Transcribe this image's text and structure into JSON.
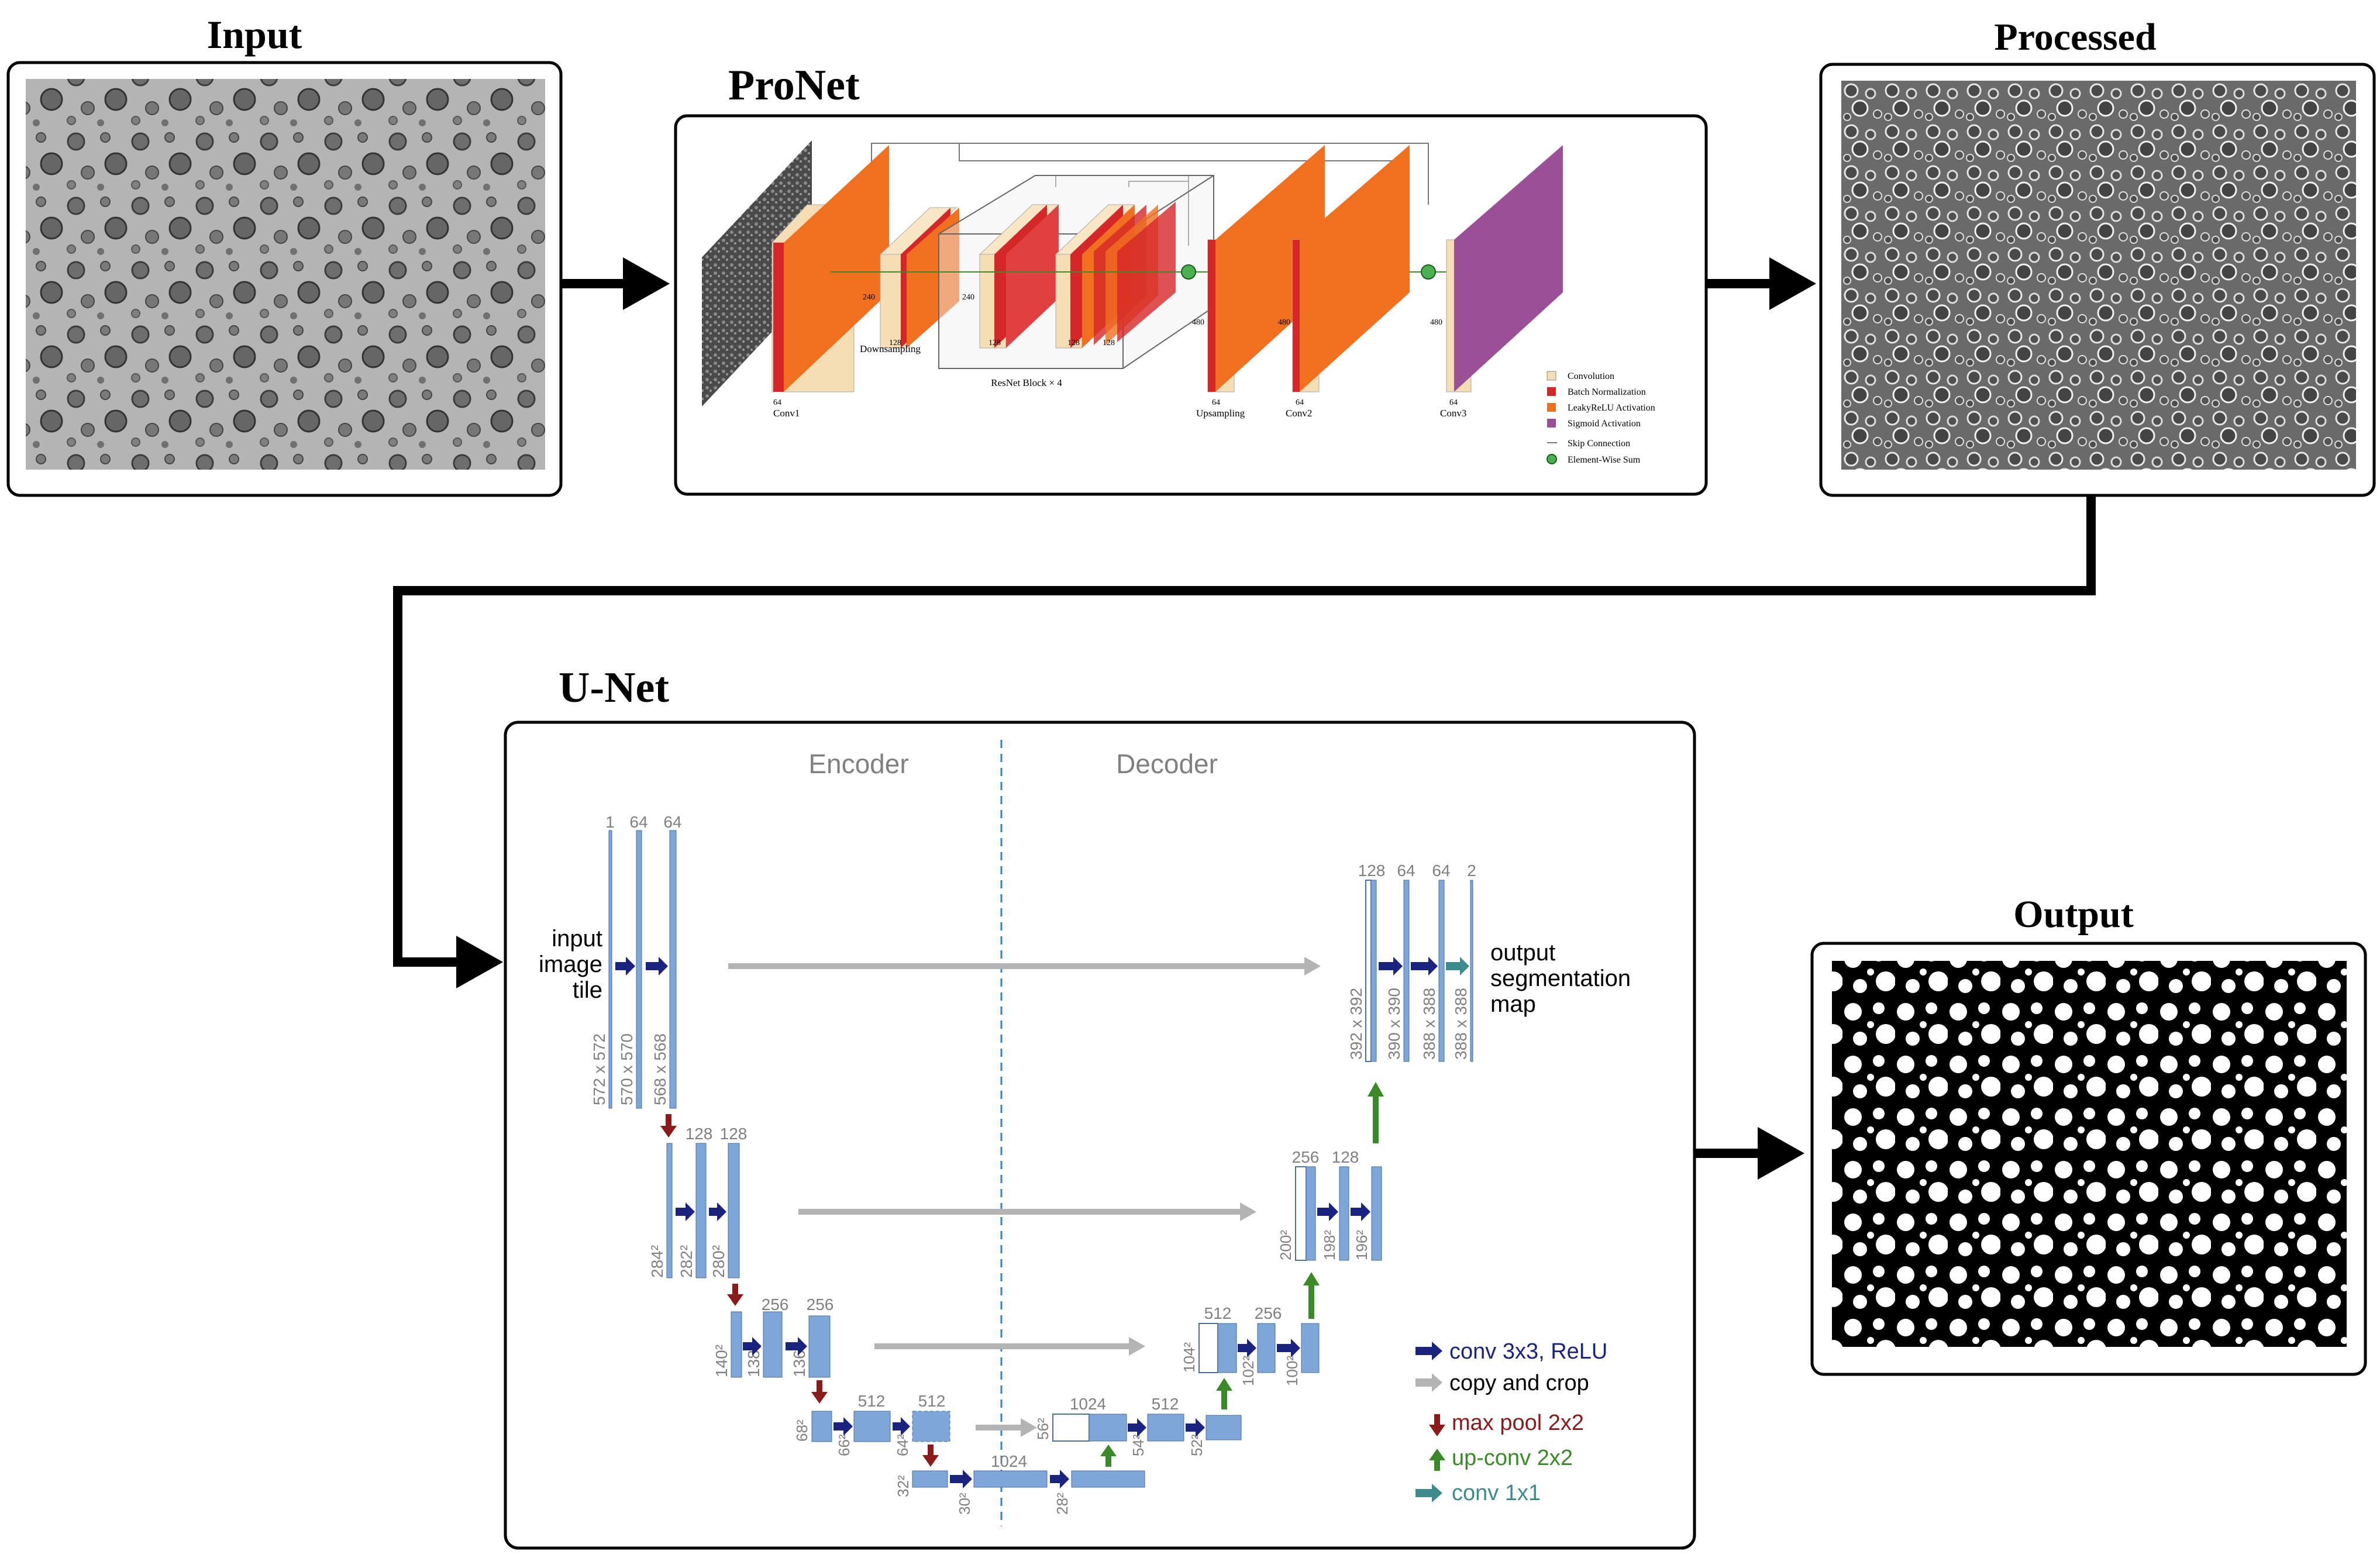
{
  "titles": {
    "input": "Input",
    "pronet": "ProNet",
    "processed": "Processed",
    "unet": "U-Net",
    "output": "Output"
  },
  "pronet": {
    "layers": {
      "conv1": "Conv1",
      "downsampling": "Downsampling",
      "resnet_block": "ResNet Block × 4",
      "upsampling": "Upsampling",
      "conv2": "Conv2",
      "conv3": "Conv3"
    },
    "dims": {
      "d64": "64",
      "d128": "128",
      "d240": "240",
      "d480": "480"
    },
    "legend": {
      "convolution": "Convolution",
      "batch_norm": "Batch Normalization",
      "leaky_relu": "LeakyReLU Activation",
      "sigmoid": "Sigmoid Activation",
      "skip": "Skip Connection",
      "sum": "Element-Wise Sum"
    },
    "colors": {
      "convolution": "#f5deb3",
      "batch_norm": "#d62728",
      "leaky_relu": "#f07020",
      "sigmoid": "#9b4f96"
    }
  },
  "unet": {
    "encoder_label": "Encoder",
    "decoder_label": "Decoder",
    "input_label": [
      "input",
      "image",
      "tile"
    ],
    "output_label": [
      "output",
      "segmentation",
      "map"
    ],
    "channels": {
      "c1": "1",
      "c2": "2",
      "c64": "64",
      "c128": "128",
      "c256": "256",
      "c512": "512",
      "c1024": "1024"
    },
    "sizes": {
      "s572": "572 x 572",
      "s570": "570 x 570",
      "s568": "568 x 568",
      "s392": "392 x 392",
      "s390": "390 x 390",
      "s388": "388 x 388",
      "s284": "284²",
      "s282": "282²",
      "s280": "280²",
      "s200": "200²",
      "s198": "198²",
      "s196": "196²",
      "s140": "140²",
      "s138": "138²",
      "s136": "136²",
      "s104": "104²",
      "s102": "102²",
      "s100": "100²",
      "s68": "68²",
      "s66": "66²",
      "s64": "64²",
      "s56": "56²",
      "s54": "54²",
      "s52": "52²",
      "s32": "32²",
      "s30": "30²",
      "s28": "28²"
    },
    "legend": {
      "conv": "conv 3x3, ReLU",
      "copy": "copy and crop",
      "pool": "max pool 2x2",
      "upconv": "up-conv 2x2",
      "conv1x1": "conv 1x1"
    },
    "colors": {
      "block": "#7ea6d8",
      "conv_arrow": "#1a237e",
      "copy_arrow": "#b4b4b4",
      "pool_arrow": "#8b1a1a",
      "upconv_arrow": "#3a8a2a",
      "conv1x1_arrow": "#3d8b8b"
    }
  }
}
